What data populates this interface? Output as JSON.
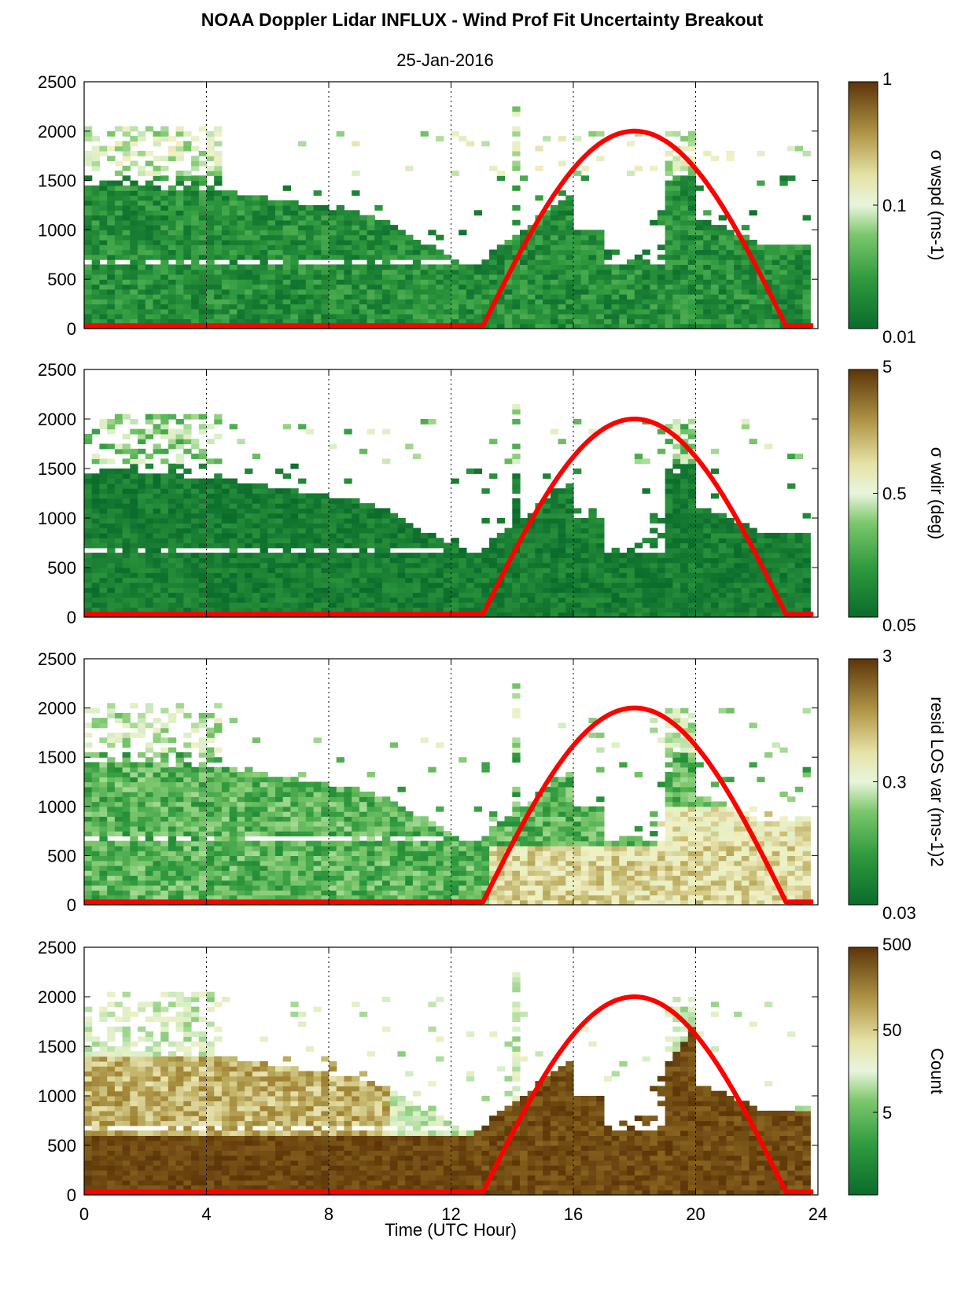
{
  "title": "NOAA Doppler Lidar INFLUX - Wind Prof Fit Uncertainty Breakout",
  "subtitle": "25-Jan-2016",
  "xlabel": "Time (UTC Hour)",
  "colors": {
    "curve": "#ff0000",
    "colormap": [
      "#0b6b2c",
      "#2f9a3e",
      "#7cc76c",
      "#d8efc7",
      "#f2f0c4",
      "#c2b56a",
      "#9c7a2a",
      "#5c3508"
    ]
  },
  "chart_data": [
    {
      "type": "heatmap",
      "xlim": [
        0,
        24
      ],
      "ylim": [
        0,
        2500
      ],
      "x_ticks": [
        "0",
        "4",
        "8",
        "12",
        "16",
        "20",
        "24"
      ],
      "x_tick_values": [
        0,
        4,
        8,
        12,
        16,
        20,
        24
      ],
      "y_ticks": [
        "0",
        "500",
        "1000",
        "1500",
        "2000",
        "2500"
      ],
      "y_tick_values": [
        0,
        500,
        1000,
        1500,
        2000,
        2500
      ],
      "grid": "vertical dotted at 4, 8, 12, 16, 20",
      "colorbar": {
        "label": "σ wspd (ms-1)",
        "scale": "log",
        "ticks": [
          "0.01",
          "0.1",
          "1"
        ],
        "range": [
          0.01,
          1
        ]
      },
      "overlay_curve": {
        "name": "",
        "start_hour": 13,
        "end_hour": 23,
        "peak_hour": 18,
        "peak_value": 2000,
        "baseline": 30
      }
    },
    {
      "type": "heatmap",
      "xlim": [
        0,
        24
      ],
      "ylim": [
        0,
        2500
      ],
      "x_ticks": [
        "0",
        "4",
        "8",
        "12",
        "16",
        "20",
        "24"
      ],
      "x_tick_values": [
        0,
        4,
        8,
        12,
        16,
        20,
        24
      ],
      "y_ticks": [
        "0",
        "500",
        "1000",
        "1500",
        "2000",
        "2500"
      ],
      "y_tick_values": [
        0,
        500,
        1000,
        1500,
        2000,
        2500
      ],
      "grid": "vertical dotted at 4, 8, 12, 16, 20",
      "colorbar": {
        "label": "σ wdir (deg)",
        "scale": "log",
        "ticks": [
          "0.05",
          "0.5",
          "5"
        ],
        "range": [
          0.05,
          5
        ]
      },
      "overlay_curve": {
        "name": "",
        "start_hour": 13,
        "end_hour": 23,
        "peak_hour": 18,
        "peak_value": 2000,
        "baseline": 30
      }
    },
    {
      "type": "heatmap",
      "xlim": [
        0,
        24
      ],
      "ylim": [
        0,
        2500
      ],
      "x_ticks": [
        "0",
        "4",
        "8",
        "12",
        "16",
        "20",
        "24"
      ],
      "x_tick_values": [
        0,
        4,
        8,
        12,
        16,
        20,
        24
      ],
      "y_ticks": [
        "0",
        "500",
        "1000",
        "1500",
        "2000",
        "2500"
      ],
      "y_tick_values": [
        0,
        500,
        1000,
        1500,
        2000,
        2500
      ],
      "grid": "vertical dotted at 4, 8, 12, 16, 20",
      "colorbar": {
        "label": "resid LOS var (ms-1)2",
        "scale": "log",
        "ticks": [
          "0.03",
          "0.3",
          "3"
        ],
        "range": [
          0.03,
          3
        ]
      },
      "overlay_curve": {
        "name": "",
        "start_hour": 13,
        "end_hour": 23,
        "peak_hour": 18,
        "peak_value": 2000,
        "baseline": 30
      }
    },
    {
      "type": "heatmap",
      "xlim": [
        0,
        24
      ],
      "ylim": [
        0,
        2500
      ],
      "x_ticks": [
        "0",
        "4",
        "8",
        "12",
        "16",
        "20",
        "24"
      ],
      "x_tick_values": [
        0,
        4,
        8,
        12,
        16,
        20,
        24
      ],
      "y_ticks": [
        "0",
        "500",
        "1000",
        "1500",
        "2000",
        "2500"
      ],
      "y_tick_values": [
        0,
        500,
        1000,
        1500,
        2000,
        2500
      ],
      "grid": "vertical dotted at 4, 8, 12, 16, 20",
      "colorbar": {
        "label": "Count",
        "scale": "log",
        "ticks": [
          "5",
          "50",
          "500"
        ],
        "range": [
          0.5,
          500
        ]
      },
      "overlay_curve": {
        "name": "",
        "start_hour": 13,
        "end_hour": 23,
        "peak_hour": 18,
        "peak_value": 2000,
        "baseline": 30
      }
    }
  ]
}
